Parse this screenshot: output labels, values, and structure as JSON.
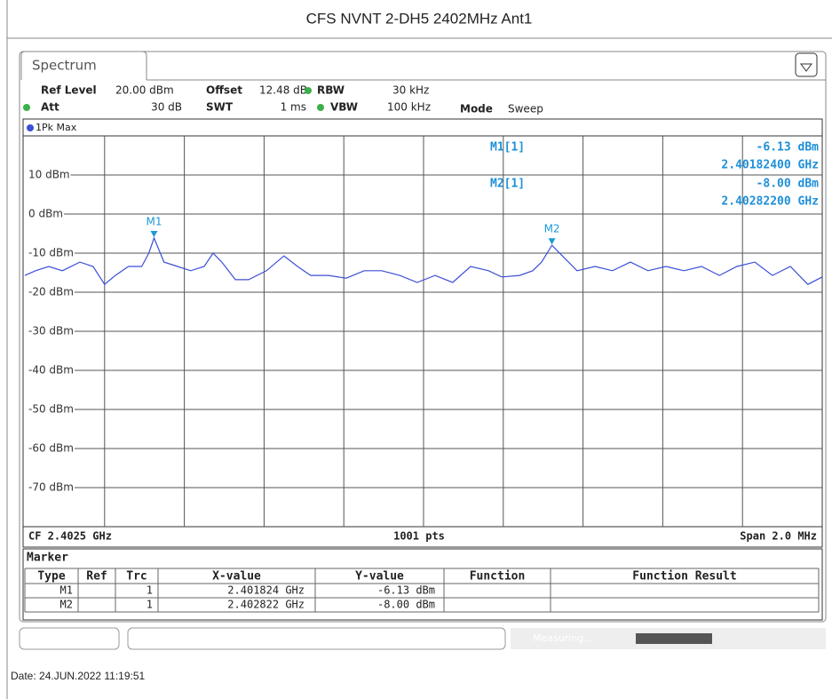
{
  "chart_data": {
    "type": "line",
    "title": "CFS NVNT 2-DH5 2402MHz Ant1",
    "x": [
      2.4015,
      2.401527,
      2.40156,
      2.401594,
      2.401638,
      2.401671,
      2.4017,
      2.401727,
      2.40176,
      2.401793,
      2.401811,
      2.401824,
      2.401849,
      2.401883,
      2.401916,
      2.40195,
      2.401972,
      2.401994,
      2.402028,
      2.402061,
      2.402106,
      2.40215,
      2.402184,
      2.402217,
      2.402262,
      2.402306,
      2.402351,
      2.402395,
      2.40244,
      2.402484,
      2.402529,
      2.402573,
      2.402618,
      2.402663,
      2.402696,
      2.402741,
      2.402774,
      2.402796,
      2.402822,
      2.402852,
      2.402885,
      2.40293,
      2.402974,
      2.403019,
      2.403063,
      2.403108,
      2.403153,
      2.403197,
      2.403242,
      2.403286,
      2.403331,
      2.403375,
      2.40342,
      2.403464,
      2.4035
    ],
    "series": [
      {
        "name": "1Pk Max",
        "color": "#3b4fd8",
        "values": [
          -15.7,
          -14.5,
          -13.4,
          -14.5,
          -12.3,
          -13.4,
          -18.0,
          -15.7,
          -13.4,
          -13.4,
          -10.0,
          -6.13,
          -12.3,
          -13.4,
          -14.5,
          -13.4,
          -10.0,
          -12.3,
          -16.8,
          -16.8,
          -14.5,
          -10.7,
          -13.4,
          -15.7,
          -15.7,
          -16.4,
          -14.5,
          -14.5,
          -15.7,
          -17.5,
          -15.7,
          -17.5,
          -13.4,
          -14.5,
          -16.1,
          -15.7,
          -14.5,
          -12.3,
          -8.0,
          -11.1,
          -14.5,
          -13.4,
          -14.5,
          -12.3,
          -14.5,
          -13.4,
          -14.5,
          -13.4,
          -15.7,
          -13.4,
          -12.3,
          -15.7,
          -13.4,
          -18.0,
          -16.1
        ]
      }
    ],
    "xlim": [
      2.4015,
      2.4035
    ],
    "ylim": [
      -80,
      20
    ],
    "yticks": [
      {
        "value": 10,
        "label": "10 dBm"
      },
      {
        "value": 0,
        "label": "0 dBm"
      },
      {
        "value": -10,
        "label": "-10 dBm"
      },
      {
        "value": -20,
        "label": "-20 dBm"
      },
      {
        "value": -30,
        "label": "-30 dBm"
      },
      {
        "value": -40,
        "label": "-40 dBm"
      },
      {
        "value": -50,
        "label": "-50 dBm"
      },
      {
        "value": -60,
        "label": "-60 dBm"
      },
      {
        "value": -70,
        "label": "-70 dBm"
      }
    ],
    "grid": true,
    "markers": [
      {
        "name": "M1",
        "x": 2.401824,
        "y": -6.13,
        "color": "#1a9ad6"
      },
      {
        "name": "M2",
        "x": 2.402822,
        "y": -8.0,
        "color": "#1a9ad6"
      }
    ],
    "marker_readout": [
      {
        "label": "M1[1]",
        "y": "-6.13 dBm",
        "x": "2.40182400 GHz"
      },
      {
        "label": "M2[1]",
        "y": "-8.00 dBm",
        "x": "2.40282200 GHz"
      }
    ],
    "footer": {
      "center": "CF 2.4025 GHz",
      "points": "1001 pts",
      "span": "Span 2.0 MHz"
    }
  },
  "tab": "Spectrum",
  "settings": {
    "ref_level": {
      "label": "Ref Level",
      "value": "20.00 dBm"
    },
    "offset": {
      "label": "Offset",
      "value": "12.48 dB"
    },
    "rbw": {
      "label": "RBW",
      "value": "30 kHz"
    },
    "att": {
      "label": "Att",
      "value": "30 dB"
    },
    "swt": {
      "label": "SWT",
      "value": "1 ms"
    },
    "vbw": {
      "label": "VBW",
      "value": "100 kHz"
    },
    "mode": {
      "label": "Mode",
      "value": "Sweep"
    }
  },
  "marker_table": {
    "title": "Marker",
    "columns": [
      "Type",
      "Ref",
      "Trc",
      "X-value",
      "Y-value",
      "Function",
      "Function Result"
    ],
    "rows": [
      {
        "type": "M1",
        "trc": "1",
        "x": "2.401824 GHz",
        "y": "-6.13 dBm"
      },
      {
        "type": "M2",
        "trc": "1",
        "x": "2.402822 GHz",
        "y": "-8.00 dBm"
      }
    ]
  },
  "status": "Measuring...",
  "date": "Date: 24.JUN.2022 11:19:51"
}
